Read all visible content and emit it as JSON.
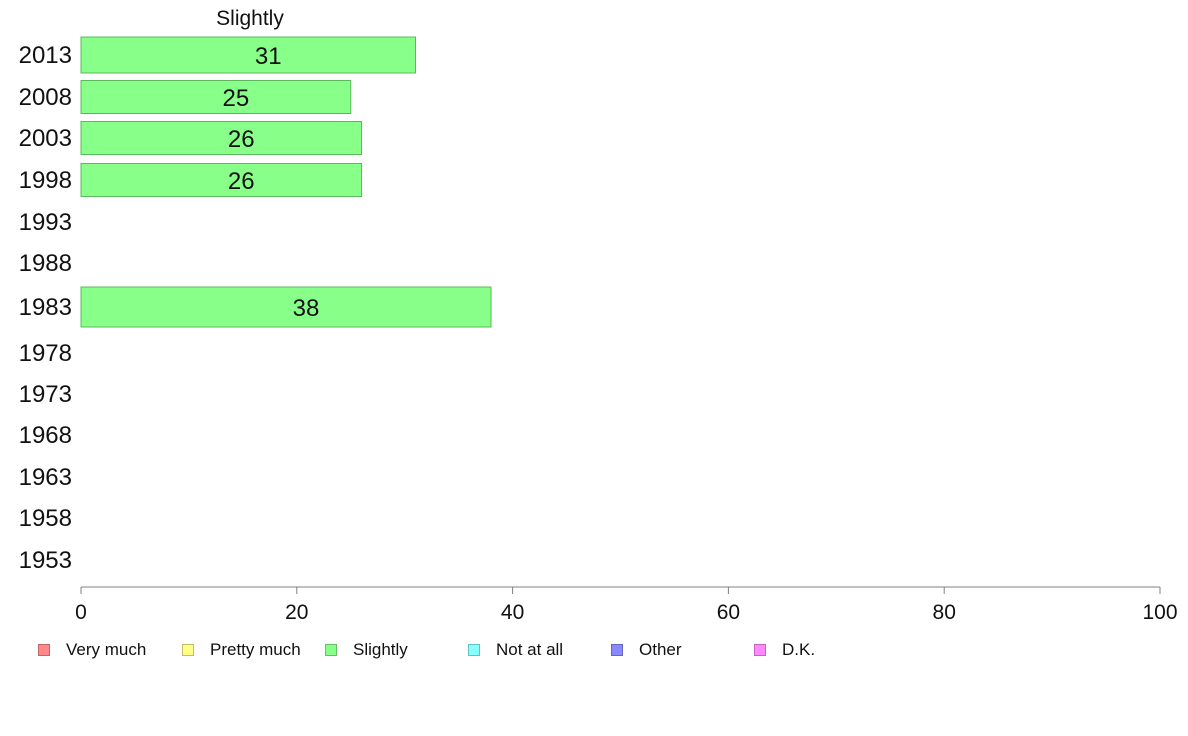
{
  "chart_data": {
    "type": "bar",
    "orientation": "horizontal",
    "title": "Slightly",
    "categories": [
      "2013",
      "2008",
      "2003",
      "1998",
      "1993",
      "1988",
      "1983",
      "1978",
      "1973",
      "1968",
      "1963",
      "1958",
      "1953"
    ],
    "series": [
      {
        "name": "Slightly",
        "values": [
          31,
          25,
          26,
          26,
          null,
          null,
          38,
          null,
          null,
          null,
          null,
          null,
          null
        ]
      }
    ],
    "data_labels": [
      "31",
      "25",
      "26",
      "26",
      "",
      "",
      "38",
      "",
      "",
      "",
      "",
      "",
      ""
    ],
    "xlim": [
      0,
      100
    ],
    "xticks": [
      "0",
      "20",
      "40",
      "60",
      "80",
      "100"
    ],
    "bar_color": "#88ff88",
    "bar_edge_color": "#5cb85c",
    "grid": false,
    "legend": {
      "placement": "bottom",
      "items": [
        {
          "label": "Very much",
          "color": "#ff8888"
        },
        {
          "label": "Pretty much",
          "color": "#ffff88"
        },
        {
          "label": "Slightly",
          "color": "#88ff88"
        },
        {
          "label": "Not at all",
          "color": "#88ffff"
        },
        {
          "label": "Other",
          "color": "#8888ff"
        },
        {
          "label": "D.K.",
          "color": "#ff88ff"
        }
      ]
    }
  }
}
